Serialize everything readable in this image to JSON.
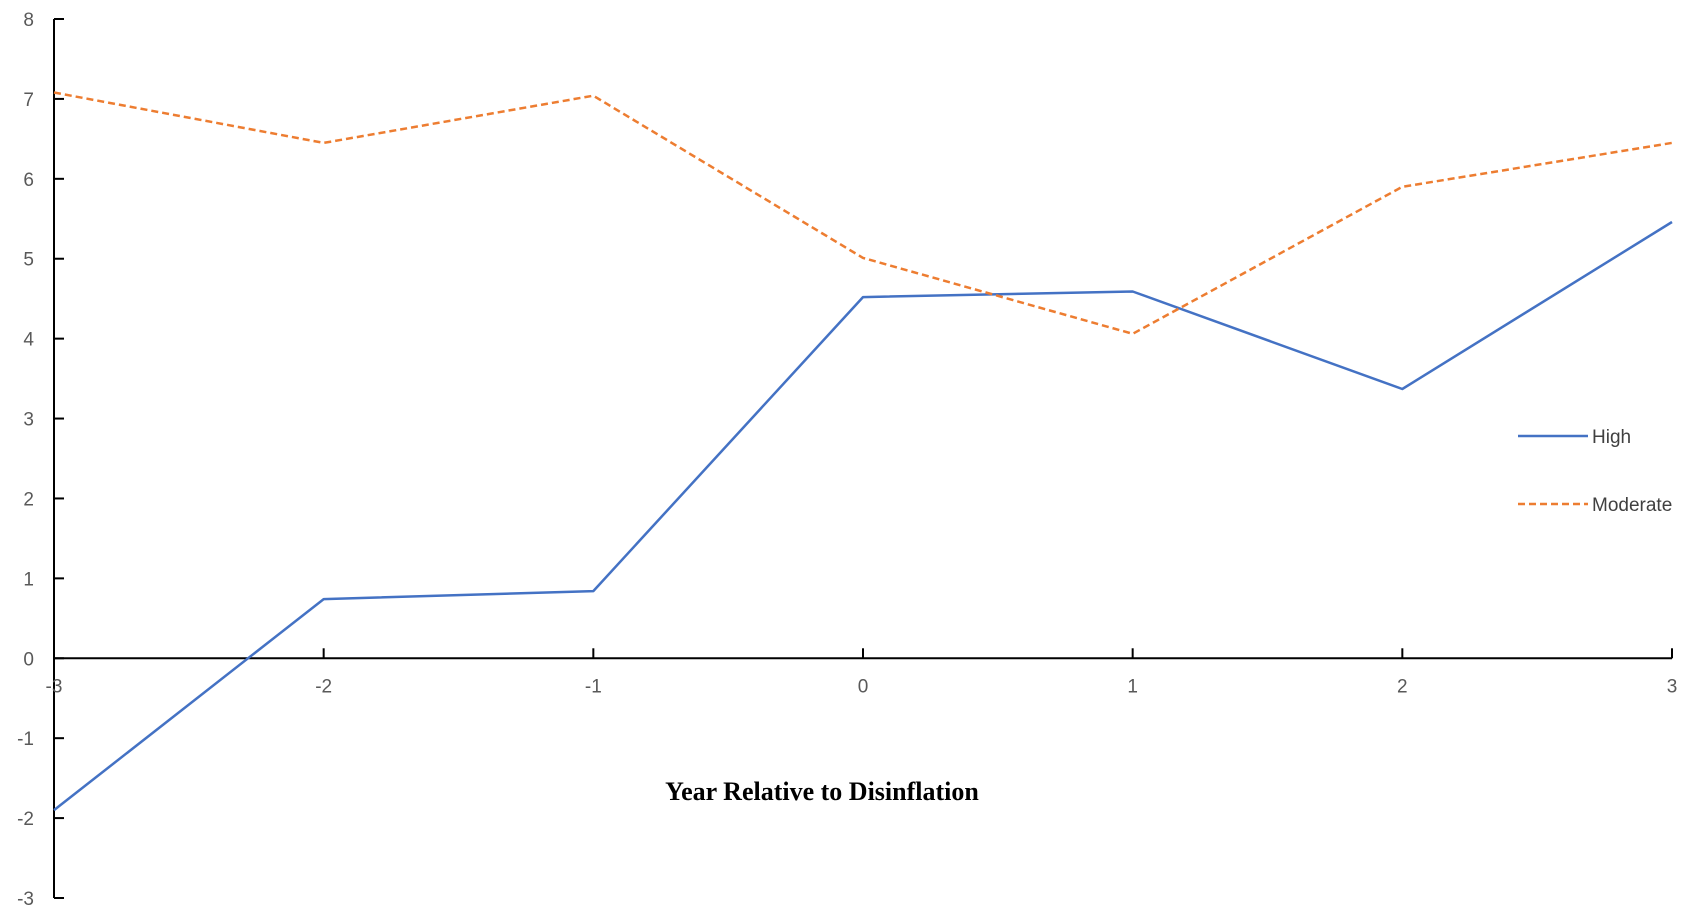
{
  "chart_data": {
    "type": "line",
    "title": "",
    "xlabel": "Year Relative to Disinflation",
    "ylabel": "",
    "x": [
      -3,
      -2,
      -1,
      0,
      1,
      2,
      3
    ],
    "xlim": [
      -3,
      3
    ],
    "ylim": [
      -3,
      8
    ],
    "x_ticks": [
      "-3",
      "-2",
      "-1",
      "0",
      "1",
      "2",
      "3"
    ],
    "y_ticks": [
      "8",
      "7",
      "6",
      "5",
      "4",
      "3",
      "2",
      "1",
      "0",
      "-1",
      "-2",
      "-3"
    ],
    "grid": false,
    "legend_position": "right",
    "series": [
      {
        "name": "High",
        "values": [
          -1.9,
          0.74,
          0.84,
          4.52,
          4.59,
          3.37,
          5.46
        ],
        "color": "#4472C4",
        "style": "solid"
      },
      {
        "name": "Moderate",
        "values": [
          7.08,
          6.45,
          7.04,
          5.01,
          4.06,
          5.9,
          6.45
        ],
        "color": "#ED7D31",
        "style": "dashed"
      }
    ]
  }
}
